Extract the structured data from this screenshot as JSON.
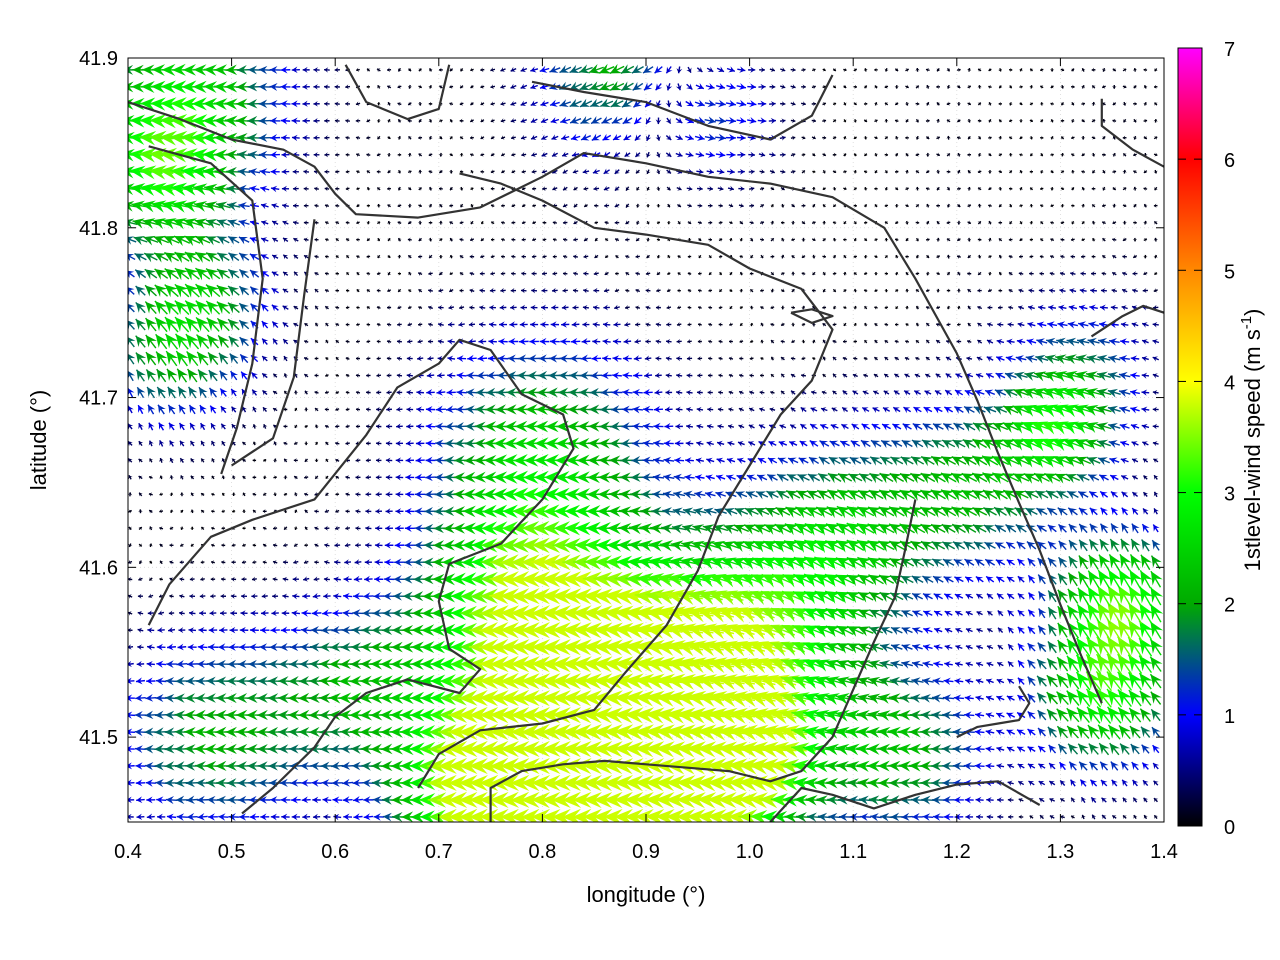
{
  "chart_data": {
    "type": "vector-field",
    "xlabel": "longitude (°)",
    "ylabel": "latitude (°)",
    "xlim": [
      0.4,
      1.4
    ],
    "ylim": [
      41.45,
      41.9
    ],
    "xticks": [
      "0.4",
      "0.5",
      "0.6",
      "0.7",
      "0.8",
      "0.9",
      "1.0",
      "1.1",
      "1.2",
      "1.3",
      "1.4"
    ],
    "yticks": [
      "41.5",
      "41.6",
      "41.7",
      "41.8",
      "41.9"
    ],
    "colorbar": {
      "label_main": "1stlevel-wind speed (m s",
      "label_sup": "-1",
      "label_end": ")",
      "range": [
        0,
        7
      ],
      "ticks": [
        "0",
        "1",
        "2",
        "3",
        "4",
        "5",
        "6",
        "7"
      ],
      "stops": [
        "#000000",
        "#0000ff",
        "#00aa00",
        "#00ff00",
        "#ffff00",
        "#ff8800",
        "#ff0000",
        "#ff00ff"
      ]
    },
    "contour_color": "#333333",
    "grid": true,
    "contours": [
      [
        [
          0.4,
          41.874
        ],
        [
          0.45,
          41.864
        ],
        [
          0.5,
          41.852
        ],
        [
          0.55,
          41.846
        ],
        [
          0.58,
          41.836
        ],
        [
          0.6,
          41.82
        ],
        [
          0.62,
          41.808
        ],
        [
          0.68,
          41.806
        ],
        [
          0.74,
          41.812
        ],
        [
          0.8,
          41.83
        ],
        [
          0.84,
          41.844
        ],
        [
          0.9,
          41.838
        ],
        [
          0.96,
          41.83
        ],
        [
          1.02,
          41.826
        ],
        [
          1.08,
          41.818
        ],
        [
          1.13,
          41.8
        ],
        [
          1.16,
          41.77
        ],
        [
          1.2,
          41.726
        ],
        [
          1.22,
          41.698
        ],
        [
          1.24,
          41.667
        ],
        [
          1.26,
          41.638
        ],
        [
          1.28,
          41.61
        ],
        [
          1.3,
          41.578
        ],
        [
          1.32,
          41.548
        ],
        [
          1.34,
          41.52
        ]
      ],
      [
        [
          0.42,
          41.848
        ],
        [
          0.48,
          41.838
        ],
        [
          0.52,
          41.816
        ],
        [
          0.53,
          41.77
        ],
        [
          0.52,
          41.72
        ],
        [
          0.505,
          41.682
        ],
        [
          0.49,
          41.655
        ]
      ],
      [
        [
          0.58,
          41.805
        ],
        [
          0.57,
          41.76
        ],
        [
          0.56,
          41.712
        ],
        [
          0.54,
          41.676
        ],
        [
          0.5,
          41.66
        ]
      ],
      [
        [
          0.42,
          41.566
        ],
        [
          0.44,
          41.59
        ],
        [
          0.48,
          41.618
        ],
        [
          0.52,
          41.628
        ],
        [
          0.58,
          41.64
        ],
        [
          0.63,
          41.678
        ],
        [
          0.66,
          41.706
        ],
        [
          0.7,
          41.72
        ],
        [
          0.72,
          41.734
        ],
        [
          0.75,
          41.728
        ],
        [
          0.78,
          41.702
        ],
        [
          0.82,
          41.69
        ],
        [
          0.83,
          41.67
        ],
        [
          0.8,
          41.64
        ],
        [
          0.76,
          41.614
        ],
        [
          0.71,
          41.602
        ],
        [
          0.7,
          41.58
        ],
        [
          0.71,
          41.552
        ],
        [
          0.74,
          41.54
        ],
        [
          0.72,
          41.526
        ],
        [
          0.67,
          41.534
        ],
        [
          0.63,
          41.526
        ],
        [
          0.6,
          41.512
        ],
        [
          0.58,
          41.494
        ],
        [
          0.54,
          41.47
        ],
        [
          0.51,
          41.455
        ]
      ],
      [
        [
          0.68,
          41.47
        ],
        [
          0.7,
          41.49
        ],
        [
          0.74,
          41.504
        ],
        [
          0.8,
          41.508
        ],
        [
          0.85,
          41.516
        ],
        [
          0.88,
          41.538
        ],
        [
          0.92,
          41.566
        ],
        [
          0.95,
          41.598
        ],
        [
          0.97,
          41.63
        ],
        [
          1.0,
          41.66
        ],
        [
          1.03,
          41.69
        ],
        [
          1.06,
          41.71
        ],
        [
          1.08,
          41.74
        ],
        [
          1.05,
          41.764
        ],
        [
          1.0,
          41.776
        ],
        [
          0.96,
          41.79
        ],
        [
          0.9,
          41.796
        ],
        [
          0.85,
          41.8
        ],
        [
          0.8,
          41.816
        ],
        [
          0.76,
          41.826
        ],
        [
          0.72,
          41.832
        ]
      ],
      [
        [
          0.75,
          41.45
        ],
        [
          0.75,
          41.47
        ],
        [
          0.78,
          41.48
        ],
        [
          0.82,
          41.484
        ],
        [
          0.86,
          41.486
        ],
        [
          0.9,
          41.484
        ],
        [
          0.94,
          41.482
        ],
        [
          0.98,
          41.48
        ],
        [
          1.02,
          41.474
        ],
        [
          1.05,
          41.48
        ],
        [
          1.08,
          41.5
        ],
        [
          1.1,
          41.528
        ],
        [
          1.12,
          41.556
        ],
        [
          1.14,
          41.582
        ],
        [
          1.15,
          41.61
        ],
        [
          1.16,
          41.64
        ]
      ],
      [
        [
          1.02,
          41.45
        ],
        [
          1.05,
          41.47
        ],
        [
          1.08,
          41.466
        ],
        [
          1.12,
          41.458
        ],
        [
          1.16,
          41.466
        ],
        [
          1.2,
          41.472
        ],
        [
          1.24,
          41.474
        ],
        [
          1.28,
          41.46
        ]
      ],
      [
        [
          1.2,
          41.5
        ],
        [
          1.22,
          41.506
        ],
        [
          1.24,
          41.508
        ],
        [
          1.26,
          41.51
        ],
        [
          1.27,
          41.52
        ],
        [
          1.26,
          41.53
        ]
      ],
      [
        [
          1.33,
          41.736
        ],
        [
          1.36,
          41.748
        ],
        [
          1.38,
          41.754
        ],
        [
          1.4,
          41.75
        ]
      ],
      [
        [
          1.34,
          41.876
        ],
        [
          1.34,
          41.86
        ],
        [
          1.37,
          41.846
        ],
        [
          1.4,
          41.836
        ]
      ],
      [
        [
          0.79,
          41.886
        ],
        [
          0.84,
          41.88
        ],
        [
          0.9,
          41.874
        ],
        [
          0.96,
          41.86
        ],
        [
          1.02,
          41.852
        ],
        [
          1.06,
          41.866
        ],
        [
          1.08,
          41.89
        ]
      ],
      [
        [
          0.61,
          41.896
        ],
        [
          0.63,
          41.874
        ],
        [
          0.67,
          41.864
        ],
        [
          0.7,
          41.87
        ],
        [
          0.71,
          41.896
        ]
      ],
      [
        [
          1.04,
          41.75
        ],
        [
          1.06,
          41.752
        ],
        [
          1.08,
          41.748
        ],
        [
          1.06,
          41.744
        ],
        [
          1.04,
          41.75
        ]
      ]
    ],
    "wind_model": "smoothed gridded estimate of 1st-level wind vectors (u,v in m s-1) read from the arrow colours and orientations"
  }
}
